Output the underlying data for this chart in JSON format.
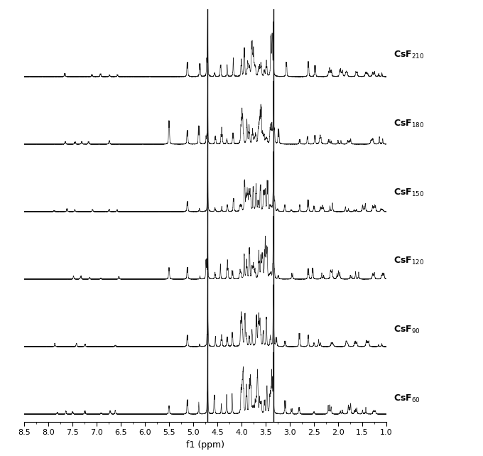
{
  "samples": [
    "CsF_{60}",
    "CsF_{90}",
    "CsF_{120}",
    "CsF_{150}",
    "CsF_{180}",
    "CsF_{210}"
  ],
  "sample_labels": [
    "CsF$_{60}$",
    "CsF$_{90}$",
    "CsF$_{120}$",
    "CsF$_{150}$",
    "CsF$_{180}$",
    "CsF$_{210}$"
  ],
  "xmin": 1.0,
  "xmax": 8.5,
  "xlabel": "f1 (ppm)",
  "background_color": "#ffffff",
  "line_color": "#1a1a1a",
  "solvent_water_ppm": 4.7,
  "solvent_meod_ppm": 3.34,
  "xticks": [
    8.5,
    8.0,
    7.5,
    7.0,
    6.5,
    6.0,
    5.5,
    5.0,
    4.5,
    4.0,
    3.5,
    3.0,
    2.5,
    2.0,
    1.5,
    1.0
  ]
}
